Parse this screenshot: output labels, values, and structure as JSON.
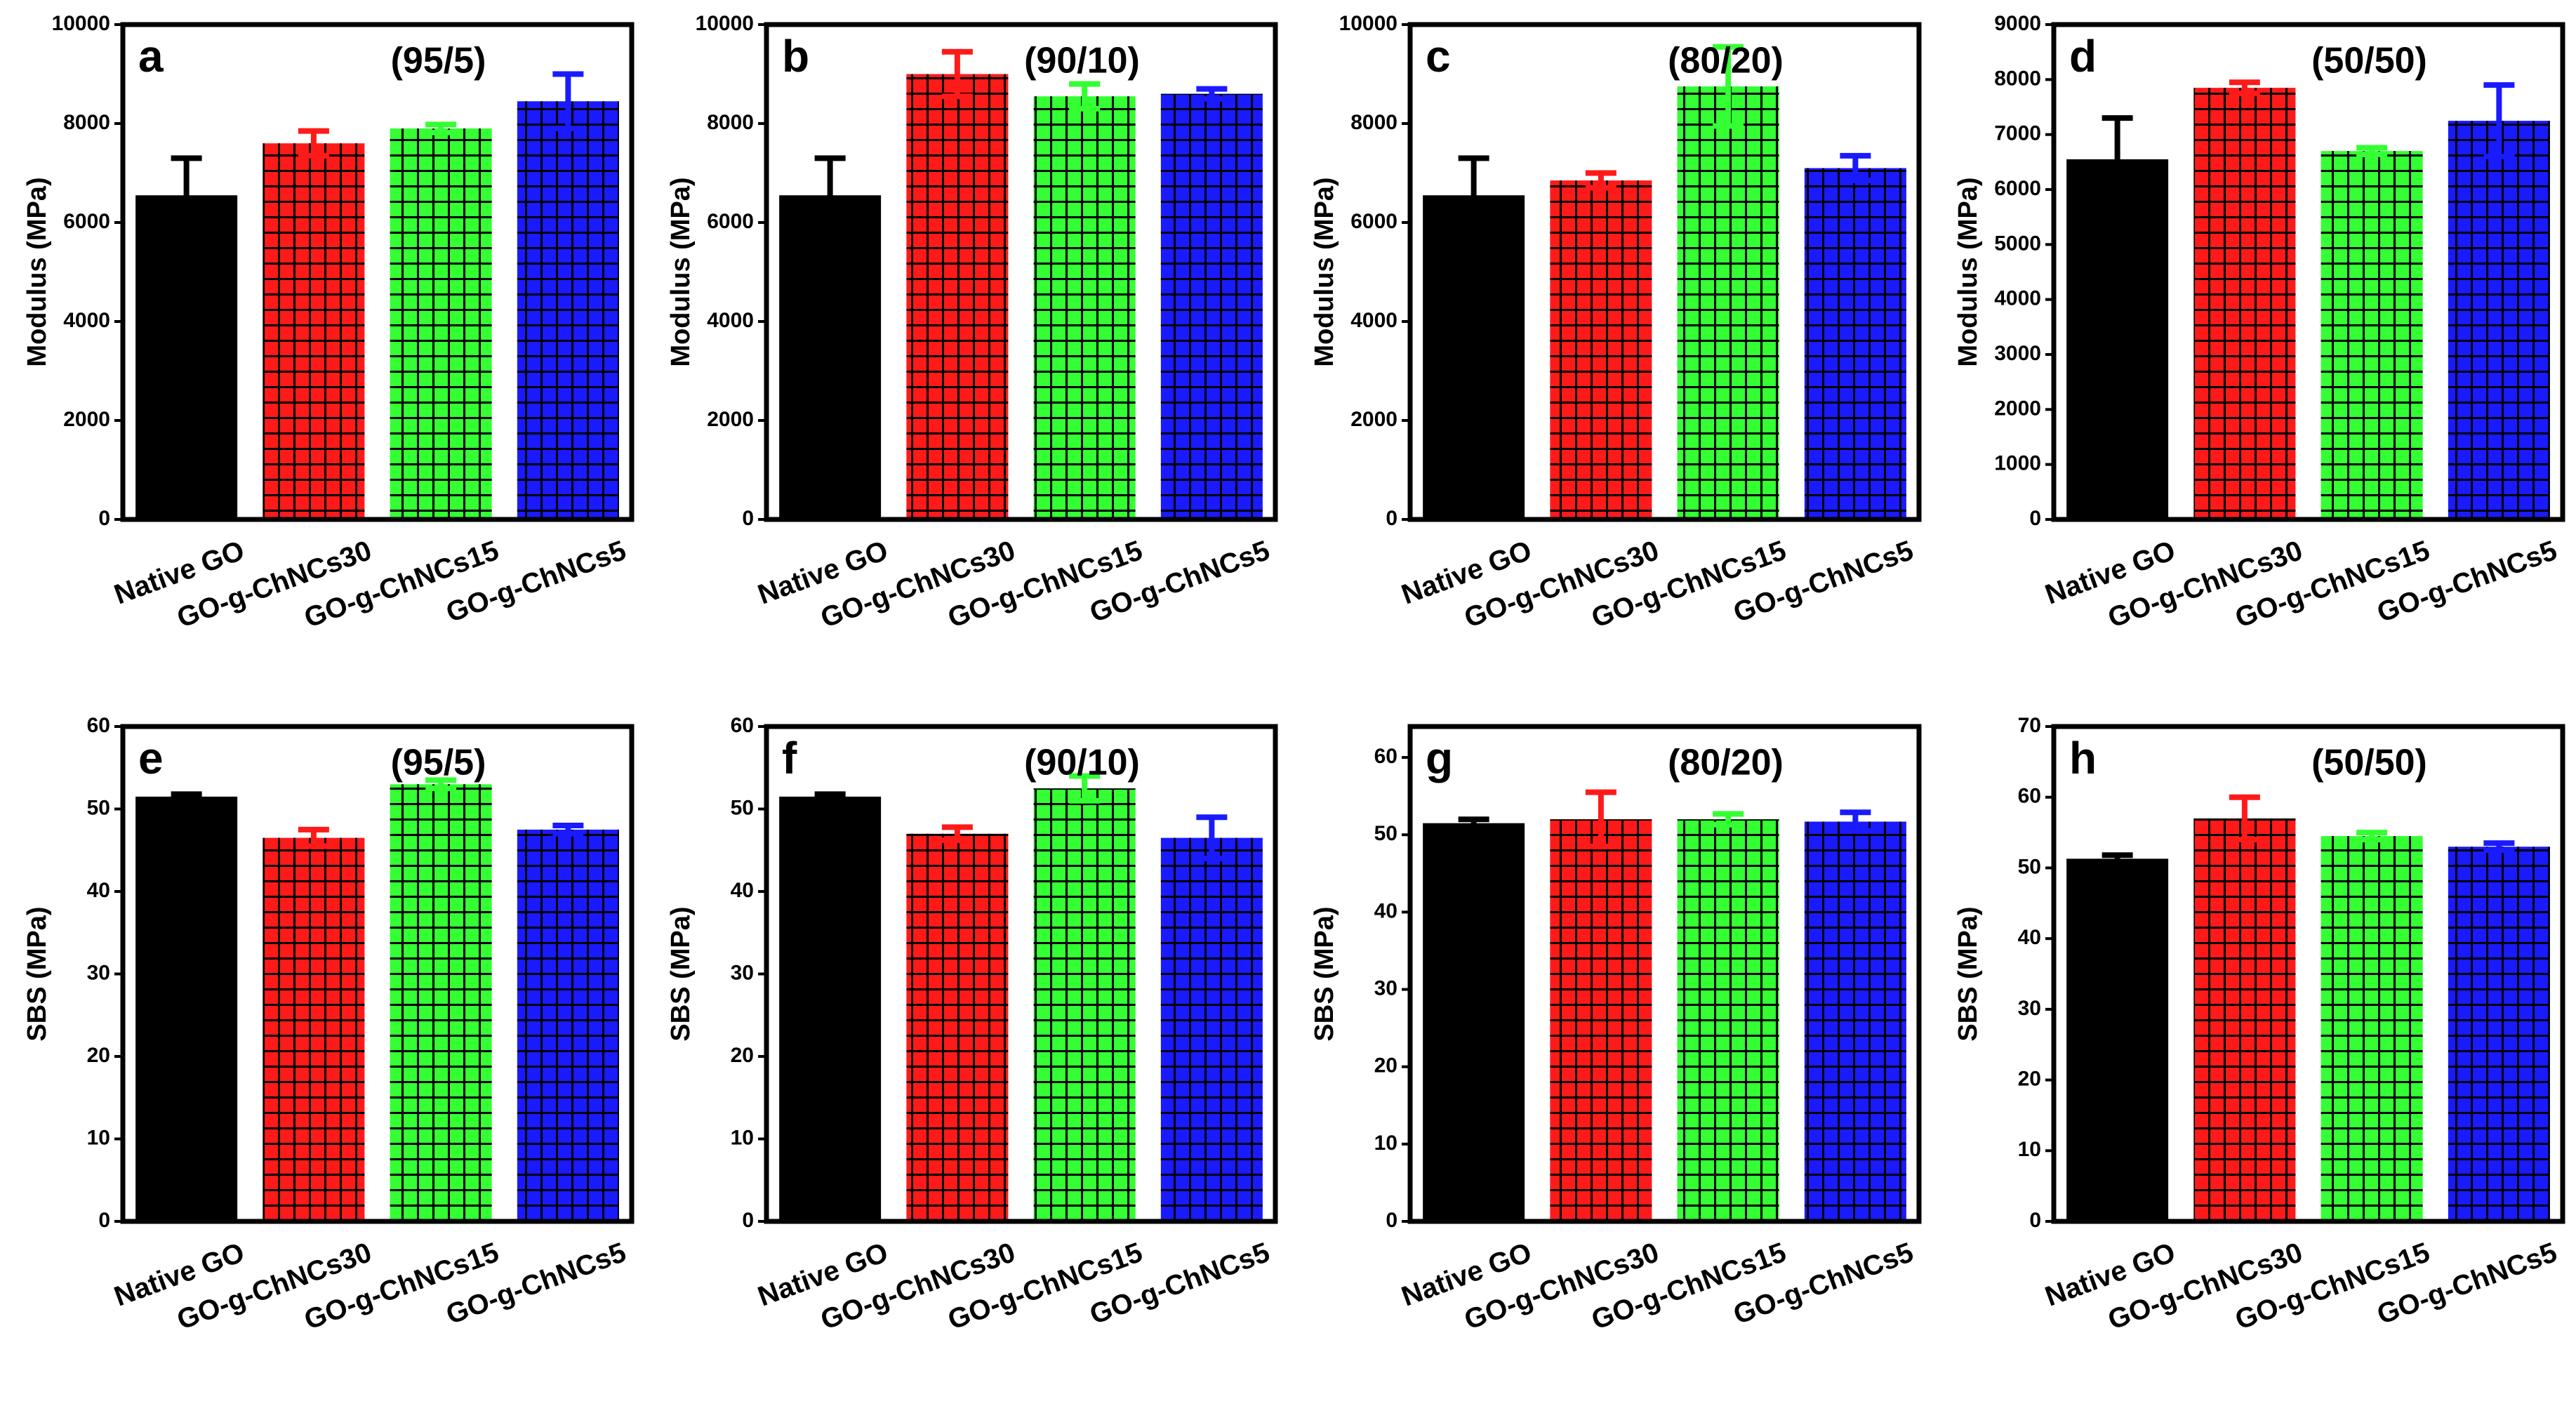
{
  "chart_data": [
    {
      "type": "bar",
      "label": "a",
      "annotation": "(95/5)",
      "ylabel": "Modulus (MPa)",
      "categories": [
        "Native GO",
        "GO-g-ChNCs30",
        "GO-g-ChNCs15",
        "GO-g-ChNCs5"
      ],
      "values": [
        6550,
        7600,
        7900,
        8450
      ],
      "errors": [
        750,
        250,
        80,
        550
      ],
      "colors": [
        "#000000",
        "#ff1a1a",
        "#33ff33",
        "#1a1aff"
      ],
      "hatched": [
        false,
        true,
        true,
        true
      ],
      "ylim": [
        0,
        10000
      ],
      "yticks": [
        0,
        2000,
        4000,
        6000,
        8000,
        10000
      ]
    },
    {
      "type": "bar",
      "label": "b",
      "annotation": "(90/10)",
      "ylabel": "Modulus (MPa)",
      "categories": [
        "Native GO",
        "GO-g-ChNCs30",
        "GO-g-ChNCs15",
        "GO-g-ChNCs5"
      ],
      "values": [
        6550,
        9000,
        8550,
        8600
      ],
      "errors": [
        750,
        450,
        250,
        100
      ],
      "colors": [
        "#000000",
        "#ff1a1a",
        "#33ff33",
        "#1a1aff"
      ],
      "hatched": [
        false,
        true,
        true,
        true
      ],
      "ylim": [
        0,
        10000
      ],
      "yticks": [
        0,
        2000,
        4000,
        6000,
        8000,
        10000
      ]
    },
    {
      "type": "bar",
      "label": "c",
      "annotation": "(80/20)",
      "ylabel": "Modulus (MPa)",
      "categories": [
        "Native GO",
        "GO-g-ChNCs30",
        "GO-g-ChNCs15",
        "GO-g-ChNCs5"
      ],
      "values": [
        6550,
        6850,
        8750,
        7100
      ],
      "errors": [
        750,
        150,
        800,
        250
      ],
      "colors": [
        "#000000",
        "#ff1a1a",
        "#33ff33",
        "#1a1aff"
      ],
      "hatched": [
        false,
        true,
        true,
        true
      ],
      "ylim": [
        0,
        10000
      ],
      "yticks": [
        0,
        2000,
        4000,
        6000,
        8000,
        10000
      ]
    },
    {
      "type": "bar",
      "label": "d",
      "annotation": "(50/50)",
      "ylabel": "Modulus (MPa)",
      "categories": [
        "Native GO",
        "GO-g-ChNCs30",
        "GO-g-ChNCs15",
        "GO-g-ChNCs5"
      ],
      "values": [
        6550,
        7850,
        6700,
        7250
      ],
      "errors": [
        750,
        100,
        60,
        650
      ],
      "colors": [
        "#000000",
        "#ff1a1a",
        "#33ff33",
        "#1a1aff"
      ],
      "hatched": [
        false,
        true,
        true,
        true
      ],
      "ylim": [
        0,
        9000
      ],
      "yticks": [
        0,
        1000,
        2000,
        3000,
        4000,
        5000,
        6000,
        7000,
        8000,
        9000
      ]
    },
    {
      "type": "bar",
      "label": "e",
      "annotation": "(95/5)",
      "ylabel": "SBS (MPa)",
      "categories": [
        "Native GO",
        "GO-g-ChNCs30",
        "GO-g-ChNCs15",
        "GO-g-ChNCs5"
      ],
      "values": [
        51.5,
        46.5,
        53,
        47.5
      ],
      "errors": [
        0.3,
        1,
        0.5,
        0.5
      ],
      "colors": [
        "#000000",
        "#ff1a1a",
        "#33ff33",
        "#1a1aff"
      ],
      "hatched": [
        false,
        true,
        true,
        true
      ],
      "ylim": [
        0,
        60
      ],
      "yticks": [
        0,
        10,
        20,
        30,
        40,
        50,
        60
      ]
    },
    {
      "type": "bar",
      "label": "f",
      "annotation": "(90/10)",
      "ylabel": "SBS (MPa)",
      "categories": [
        "Native GO",
        "GO-g-ChNCs30",
        "GO-g-ChNCs15",
        "GO-g-ChNCs5"
      ],
      "values": [
        51.5,
        47,
        52.5,
        46.5
      ],
      "errors": [
        0.3,
        0.8,
        1.5,
        2.5
      ],
      "colors": [
        "#000000",
        "#ff1a1a",
        "#33ff33",
        "#1a1aff"
      ],
      "hatched": [
        false,
        true,
        true,
        true
      ],
      "ylim": [
        0,
        60
      ],
      "yticks": [
        0,
        10,
        20,
        30,
        40,
        50,
        60
      ]
    },
    {
      "type": "bar",
      "label": "g",
      "annotation": "(80/20)",
      "ylabel": "SBS (MPa)",
      "categories": [
        "Native GO",
        "GO-g-ChNCs30",
        "GO-g-ChNCs15",
        "GO-g-ChNCs5"
      ],
      "values": [
        51.5,
        52,
        52,
        51.7
      ],
      "errors": [
        0.5,
        3.5,
        0.7,
        1.2
      ],
      "colors": [
        "#000000",
        "#ff1a1a",
        "#33ff33",
        "#1a1aff"
      ],
      "hatched": [
        false,
        true,
        true,
        true
      ],
      "ylim": [
        0,
        64
      ],
      "yticks": [
        0,
        10,
        20,
        30,
        40,
        50,
        60
      ]
    },
    {
      "type": "bar",
      "label": "h",
      "annotation": "(50/50)",
      "ylabel": "SBS (MPa)",
      "categories": [
        "Native GO",
        "GO-g-ChNCs30",
        "GO-g-ChNCs15",
        "GO-g-ChNCs5"
      ],
      "values": [
        51.3,
        57,
        54.5,
        53
      ],
      "errors": [
        0.5,
        3,
        0.5,
        0.5
      ],
      "colors": [
        "#000000",
        "#ff1a1a",
        "#33ff33",
        "#1a1aff"
      ],
      "hatched": [
        false,
        true,
        true,
        true
      ],
      "ylim": [
        0,
        70
      ],
      "yticks": [
        0,
        10,
        20,
        30,
        40,
        50,
        60,
        70
      ]
    }
  ]
}
